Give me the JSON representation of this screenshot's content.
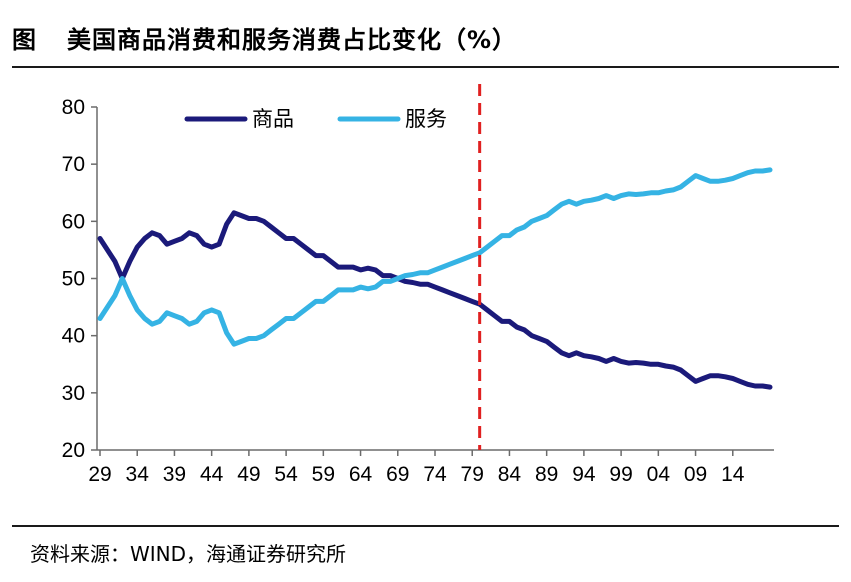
{
  "header": {
    "figure_label": "图",
    "title": "美国商品消费和服务消费占比变化（%）"
  },
  "footer": {
    "source": "资料来源：WIND，海通证券研究所"
  },
  "chart_data": {
    "type": "line",
    "title": "美国商品消费和服务消费占比变化（%）",
    "xlabel": "",
    "ylabel": "",
    "ylim": [
      20,
      80
    ],
    "yticks": [
      20,
      30,
      40,
      50,
      60,
      70,
      80
    ],
    "xlim": [
      1929,
      2019
    ],
    "xtick_values": [
      1929,
      1934,
      1939,
      1944,
      1949,
      1954,
      1959,
      1964,
      1969,
      1974,
      1979,
      1984,
      1989,
      1994,
      1999,
      2004,
      2009,
      2014
    ],
    "xtick_labels": [
      "29",
      "34",
      "39",
      "44",
      "49",
      "54",
      "59",
      "64",
      "69",
      "74",
      "79",
      "84",
      "89",
      "94",
      "99",
      "04",
      "09",
      "14"
    ],
    "grid": false,
    "legend_position": "top-left",
    "reference_line": {
      "x": 1980,
      "color": "#e02020",
      "style": "dashed"
    },
    "series": [
      {
        "name": "商品",
        "color": "#1b1a7a",
        "x": [
          1929,
          1930,
          1931,
          1932,
          1933,
          1934,
          1935,
          1936,
          1937,
          1938,
          1939,
          1940,
          1941,
          1942,
          1943,
          1944,
          1945,
          1946,
          1947,
          1948,
          1949,
          1950,
          1951,
          1952,
          1953,
          1954,
          1955,
          1956,
          1957,
          1958,
          1959,
          1960,
          1961,
          1962,
          1963,
          1964,
          1965,
          1966,
          1967,
          1968,
          1969,
          1970,
          1971,
          1972,
          1973,
          1974,
          1975,
          1976,
          1977,
          1978,
          1979,
          1980,
          1981,
          1982,
          1983,
          1984,
          1985,
          1986,
          1987,
          1988,
          1989,
          1990,
          1991,
          1992,
          1993,
          1994,
          1995,
          1996,
          1997,
          1998,
          1999,
          2000,
          2001,
          2002,
          2003,
          2004,
          2005,
          2006,
          2007,
          2008,
          2009,
          2010,
          2011,
          2012,
          2013,
          2014,
          2015,
          2016,
          2017,
          2018,
          2019
        ],
        "values": [
          57,
          55,
          53,
          50,
          53,
          55.5,
          57,
          58,
          57.5,
          56,
          56.5,
          57,
          58,
          57.5,
          56,
          55.5,
          56,
          59.5,
          61.5,
          61,
          60.5,
          60.5,
          60,
          59,
          58,
          57,
          57,
          56,
          55,
          54,
          54,
          53,
          52,
          52,
          52,
          51.5,
          51.8,
          51.5,
          50.5,
          50.5,
          50,
          49.5,
          49.3,
          49,
          49,
          48.5,
          48,
          47.5,
          47,
          46.5,
          46,
          45.5,
          44.5,
          43.5,
          42.5,
          42.5,
          41.5,
          41,
          40,
          39.5,
          39,
          38,
          37,
          36.5,
          37,
          36.5,
          36.3,
          36,
          35.5,
          36,
          35.5,
          35.2,
          35.3,
          35.2,
          35,
          35,
          34.7,
          34.5,
          34,
          33,
          32,
          32.5,
          33,
          33,
          32.8,
          32.5,
          32,
          31.5,
          31.2,
          31.2,
          31
        ]
      },
      {
        "name": "服务",
        "color": "#35b3e4",
        "x": [
          1929,
          1930,
          1931,
          1932,
          1933,
          1934,
          1935,
          1936,
          1937,
          1938,
          1939,
          1940,
          1941,
          1942,
          1943,
          1944,
          1945,
          1946,
          1947,
          1948,
          1949,
          1950,
          1951,
          1952,
          1953,
          1954,
          1955,
          1956,
          1957,
          1958,
          1959,
          1960,
          1961,
          1962,
          1963,
          1964,
          1965,
          1966,
          1967,
          1968,
          1969,
          1970,
          1971,
          1972,
          1973,
          1974,
          1975,
          1976,
          1977,
          1978,
          1979,
          1980,
          1981,
          1982,
          1983,
          1984,
          1985,
          1986,
          1987,
          1988,
          1989,
          1990,
          1991,
          1992,
          1993,
          1994,
          1995,
          1996,
          1997,
          1998,
          1999,
          2000,
          2001,
          2002,
          2003,
          2004,
          2005,
          2006,
          2007,
          2008,
          2009,
          2010,
          2011,
          2012,
          2013,
          2014,
          2015,
          2016,
          2017,
          2018,
          2019
        ],
        "values": [
          43,
          45,
          47,
          50,
          47,
          44.5,
          43,
          42,
          42.5,
          44,
          43.5,
          43,
          42,
          42.5,
          44,
          44.5,
          44,
          40.5,
          38.5,
          39,
          39.5,
          39.5,
          40,
          41,
          42,
          43,
          43,
          44,
          45,
          46,
          46,
          47,
          48,
          48,
          48,
          48.5,
          48.2,
          48.5,
          49.5,
          49.5,
          50,
          50.5,
          50.7,
          51,
          51,
          51.5,
          52,
          52.5,
          53,
          53.5,
          54,
          54.5,
          55.5,
          56.5,
          57.5,
          57.5,
          58.5,
          59,
          60,
          60.5,
          61,
          62,
          63,
          63.5,
          63,
          63.5,
          63.7,
          64,
          64.5,
          64,
          64.5,
          64.8,
          64.7,
          64.8,
          65,
          65,
          65.3,
          65.5,
          66,
          67,
          68,
          67.5,
          67,
          67,
          67.2,
          67.5,
          68,
          68.5,
          68.8,
          68.8,
          69
        ]
      }
    ]
  }
}
